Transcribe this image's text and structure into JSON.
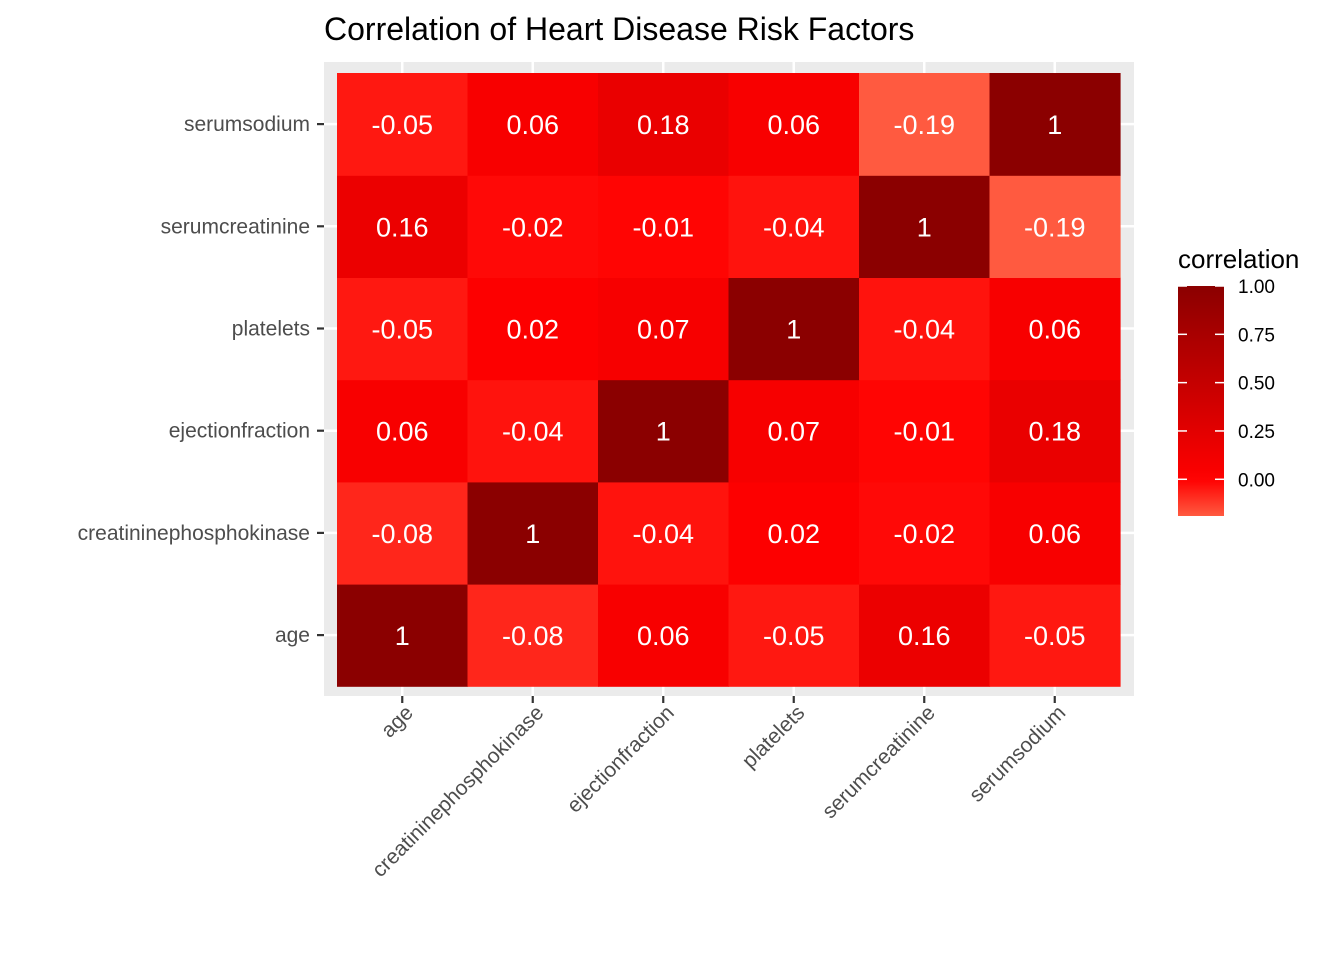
{
  "chart_data": {
    "type": "heatmap",
    "title": "Correlation of Heart Disease Risk Factors",
    "xlabel": "",
    "ylabel": "",
    "x_categories": [
      "age",
      "creatininephosphokinase",
      "ejectionfraction",
      "platelets",
      "serumcreatinine",
      "serumsodium"
    ],
    "y_categories": [
      "age",
      "creatininephosphokinase",
      "ejectionfraction",
      "platelets",
      "serumcreatinine",
      "serumsodium"
    ],
    "values": [
      [
        1,
        -0.08,
        0.06,
        -0.05,
        0.16,
        -0.05
      ],
      [
        -0.08,
        1,
        -0.04,
        0.02,
        -0.02,
        0.06
      ],
      [
        0.06,
        -0.04,
        1,
        0.07,
        -0.01,
        0.18
      ],
      [
        -0.05,
        0.02,
        0.07,
        1,
        -0.04,
        0.06
      ],
      [
        0.16,
        -0.02,
        -0.01,
        -0.04,
        1,
        -0.19
      ],
      [
        -0.05,
        0.06,
        0.18,
        0.06,
        -0.19,
        1
      ]
    ],
    "labels": [
      [
        "1",
        "-0.08",
        "0.06",
        "-0.05",
        "0.16",
        "-0.05"
      ],
      [
        "-0.08",
        "1",
        "-0.04",
        "0.02",
        "-0.02",
        "0.06"
      ],
      [
        "0.06",
        "-0.04",
        "1",
        "0.07",
        "-0.01",
        "0.18"
      ],
      [
        "-0.05",
        "0.02",
        "0.07",
        "1",
        "-0.04",
        "0.06"
      ],
      [
        "0.16",
        "-0.02",
        "-0.01",
        "-0.04",
        "1",
        "-0.19"
      ],
      [
        "-0.05",
        "0.06",
        "0.18",
        "0.06",
        "-0.19",
        "1"
      ]
    ],
    "legend": {
      "title": "correlation",
      "ticks": [
        1.0,
        0.75,
        0.5,
        0.25,
        0.0
      ],
      "tick_labels": [
        "1.00",
        "0.75",
        "0.50",
        "0.25",
        "0.00"
      ],
      "range": [
        -0.19,
        1.0
      ],
      "placement": "right"
    },
    "colors": {
      "low": "#ff5a40",
      "mid": "#ff0000",
      "high": "#8b0000",
      "panel_background": "#ebebeb",
      "grid": "#ffffff"
    }
  }
}
